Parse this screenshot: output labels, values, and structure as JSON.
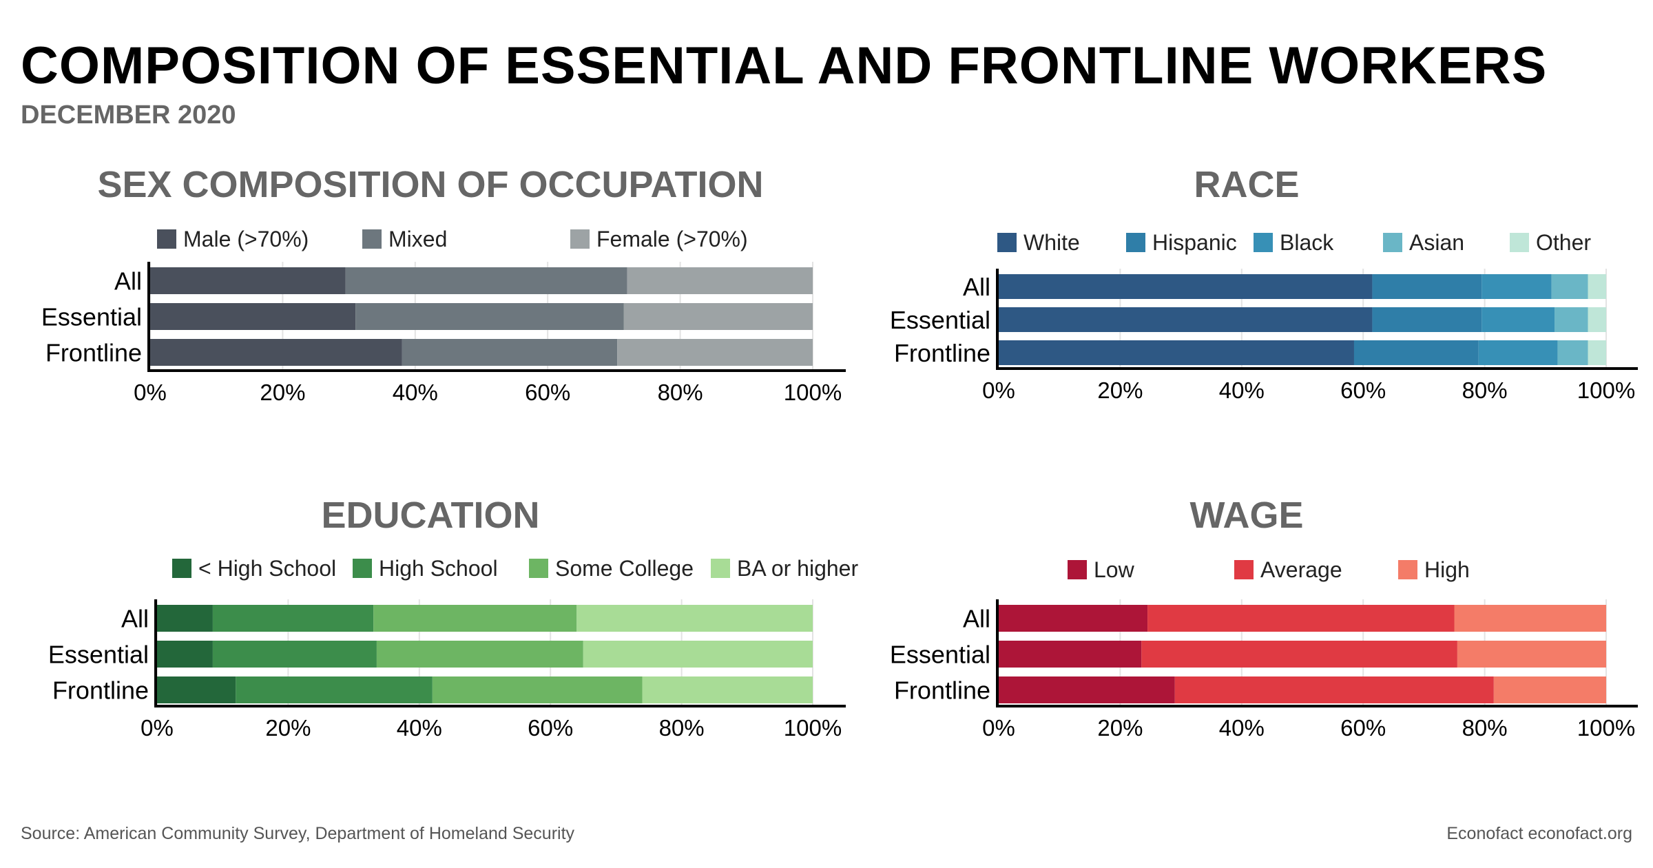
{
  "header": {
    "title": "COMPOSITION OF ESSENTIAL AND FRONTLINE WORKERS",
    "subtitle": "DECEMBER 2020"
  },
  "footer": {
    "source": "Source: American Community Survey, Department of Homeland Security",
    "brand": "Econofact  econofact.org"
  },
  "chart_data": [
    {
      "type": "bar",
      "orientation": "horizontal-stacked",
      "title": "SEX COMPOSITION OF OCCUPATION",
      "categories": [
        "All",
        "Essential",
        "Frontline"
      ],
      "xlim": [
        0,
        100
      ],
      "xticks": [
        "0%",
        "20%",
        "40%",
        "60%",
        "80%",
        "100%"
      ],
      "legend_position": "top",
      "series": [
        {
          "name": "Male (>70%)",
          "color": "#4a505c",
          "values": [
            29.5,
            31,
            38
          ]
        },
        {
          "name": "Mixed",
          "color": "#6d777e",
          "values": [
            42.5,
            40.5,
            32.5
          ]
        },
        {
          "name": "Female (>70%)",
          "color": "#9da3a5",
          "values": [
            28,
            28.5,
            29.5
          ]
        }
      ]
    },
    {
      "type": "bar",
      "orientation": "horizontal-stacked",
      "title": "RACE",
      "categories": [
        "All",
        "Essential",
        "Frontline"
      ],
      "xlim": [
        0,
        100
      ],
      "xticks": [
        "0%",
        "20%",
        "40%",
        "60%",
        "80%",
        "100%"
      ],
      "legend_position": "top",
      "series": [
        {
          "name": "White",
          "color": "#2e5884",
          "values": [
            61.5,
            61.5,
            58.5
          ]
        },
        {
          "name": "Hispanic",
          "color": "#2f7ea8",
          "values": [
            18,
            18,
            20.5
          ]
        },
        {
          "name": "Black",
          "color": "#3790b6",
          "values": [
            11.5,
            12,
            13
          ]
        },
        {
          "name": "Asian",
          "color": "#6ab6c6",
          "values": [
            6,
            5.5,
            5
          ]
        },
        {
          "name": "Other",
          "color": "#bfe6d8",
          "values": [
            3,
            3,
            3
          ]
        }
      ]
    },
    {
      "type": "bar",
      "orientation": "horizontal-stacked",
      "title": "EDUCATION",
      "categories": [
        "All",
        "Essential",
        "Frontline"
      ],
      "xlim": [
        0,
        100
      ],
      "xticks": [
        "0%",
        "20%",
        "40%",
        "60%",
        "80%",
        "100%"
      ],
      "legend_position": "top",
      "series": [
        {
          "name": "< High School",
          "color": "#23673a",
          "values": [
            8.5,
            8.5,
            12
          ]
        },
        {
          "name": "High School",
          "color": "#3c8d4b",
          "values": [
            24.5,
            25,
            30
          ]
        },
        {
          "name": "Some College",
          "color": "#6db563",
          "values": [
            31,
            31.5,
            32
          ]
        },
        {
          "name": "BA or higher",
          "color": "#a8dc96",
          "values": [
            36,
            35,
            26
          ]
        }
      ]
    },
    {
      "type": "bar",
      "orientation": "horizontal-stacked",
      "title": "WAGE",
      "categories": [
        "All",
        "Essential",
        "Frontline"
      ],
      "xlim": [
        0,
        100
      ],
      "xticks": [
        "0%",
        "20%",
        "40%",
        "60%",
        "80%",
        "100%"
      ],
      "legend_position": "top",
      "series": [
        {
          "name": "Low",
          "color": "#ad1538",
          "values": [
            24.5,
            23.5,
            29
          ]
        },
        {
          "name": "Average",
          "color": "#e03a43",
          "values": [
            50.5,
            52,
            52.5
          ]
        },
        {
          "name": "High",
          "color": "#f47c68",
          "values": [
            25,
            24.5,
            18.5
          ]
        }
      ]
    }
  ]
}
